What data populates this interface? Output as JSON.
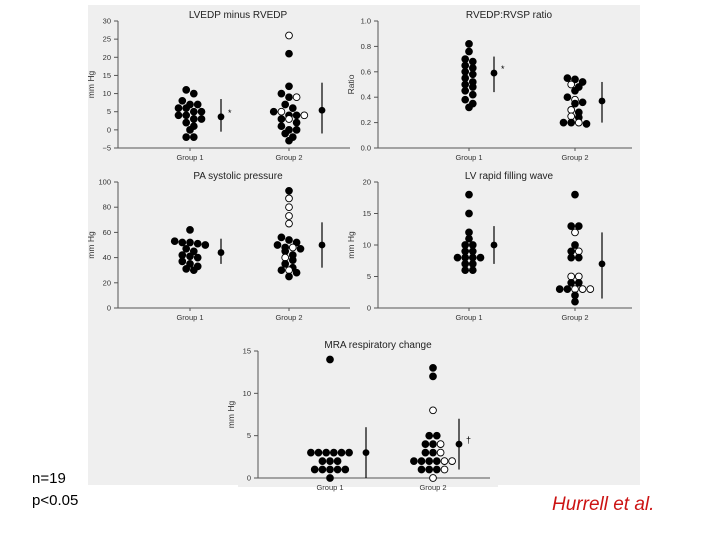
{
  "notes": {
    "n": "n=19",
    "p": "p<0.05"
  },
  "citation": "Hurrell et al.",
  "colors": {
    "panel_background": "#efefef",
    "filled_marker": "#000000",
    "citation": "#cc1414"
  },
  "chart_data": [
    {
      "type": "scatter",
      "title": "LVEDP minus RVEDP",
      "ylabel": "mm Hg",
      "categories": [
        "Group 1",
        "Group 2"
      ],
      "ylim": [
        -5,
        30
      ],
      "yticks": [
        -5,
        0,
        5,
        10,
        15,
        20,
        25,
        30
      ],
      "series": [
        {
          "group": "Group 1",
          "filled": [
            11,
            10,
            8,
            7,
            7,
            6,
            6,
            5,
            5,
            4,
            4,
            3,
            3,
            2,
            1,
            0,
            -2,
            -2
          ],
          "open": []
        },
        {
          "group": "Group 2",
          "filled": [
            21,
            12,
            10,
            9,
            7,
            6,
            5,
            4,
            4,
            3,
            2,
            1,
            0,
            0,
            -1,
            -2,
            -3
          ],
          "open": [
            26,
            9,
            5,
            4,
            3
          ]
        }
      ],
      "summaries": [
        {
          "group": "Group 1",
          "mean": 3.6,
          "low": -0.5,
          "high": 8.5,
          "mark": "*"
        },
        {
          "group": "Group 2",
          "mean": 5.4,
          "low": -1,
          "high": 13,
          "mark": ""
        }
      ]
    },
    {
      "type": "scatter",
      "title": "RVEDP:RVSP ratio",
      "ylabel": "Ratio",
      "categories": [
        "Group 1",
        "Group 2"
      ],
      "ylim": [
        0,
        1
      ],
      "yticks": [
        0,
        0.2,
        0.4,
        0.6,
        0.8,
        1.0
      ],
      "series": [
        {
          "group": "Group 1",
          "filled": [
            0.82,
            0.76,
            0.7,
            0.68,
            0.65,
            0.63,
            0.6,
            0.58,
            0.55,
            0.52,
            0.5,
            0.48,
            0.45,
            0.42,
            0.38,
            0.35,
            0.32
          ],
          "open": []
        },
        {
          "group": "Group 2",
          "filled": [
            0.55,
            0.54,
            0.52,
            0.48,
            0.45,
            0.4,
            0.36,
            0.35,
            0.28,
            0.24,
            0.2,
            0.2,
            0.19
          ],
          "open": [
            0.5,
            0.38,
            0.3,
            0.25,
            0.2
          ]
        }
      ],
      "summaries": [
        {
          "group": "Group 1",
          "mean": 0.59,
          "low": 0.44,
          "high": 0.72,
          "mark": "*"
        },
        {
          "group": "Group 2",
          "mean": 0.37,
          "low": 0.2,
          "high": 0.52,
          "mark": ""
        }
      ]
    },
    {
      "type": "scatter",
      "title": "PA systolic pressure",
      "ylabel": "mm Hg",
      "categories": [
        "Group 1",
        "Group 2"
      ],
      "ylim": [
        0,
        100
      ],
      "yticks": [
        0,
        20,
        40,
        60,
        80,
        100
      ],
      "series": [
        {
          "group": "Group 1",
          "filled": [
            62,
            53,
            52,
            52,
            51,
            50,
            47,
            45,
            42,
            41,
            40,
            37,
            35,
            33,
            31,
            30
          ],
          "open": []
        },
        {
          "group": "Group 2",
          "filled": [
            93,
            56,
            54,
            52,
            50,
            48,
            47,
            45,
            42,
            38,
            35,
            32,
            30,
            28,
            25
          ],
          "open": [
            87,
            80,
            73,
            67,
            48,
            40,
            30
          ]
        }
      ],
      "summaries": [
        {
          "group": "Group 1",
          "mean": 44,
          "low": 35,
          "high": 55,
          "mark": ""
        },
        {
          "group": "Group 2",
          "mean": 50,
          "low": 32,
          "high": 68,
          "mark": ""
        }
      ]
    },
    {
      "type": "scatter",
      "title": "LV rapid filling wave",
      "ylabel": "mm Hg",
      "categories": [
        "Group 1",
        "Group 2"
      ],
      "ylim": [
        0,
        20
      ],
      "yticks": [
        0,
        5,
        10,
        15,
        20
      ],
      "series": [
        {
          "group": "Group 1",
          "filled": [
            18,
            15,
            12,
            11,
            10,
            10,
            9,
            9,
            8,
            8,
            8,
            8,
            7,
            7,
            6,
            6
          ],
          "open": []
        },
        {
          "group": "Group 2",
          "filled": [
            18,
            13,
            13,
            10,
            9,
            8,
            8,
            4,
            4,
            3,
            3,
            2,
            1
          ],
          "open": [
            12,
            9,
            5,
            5,
            3,
            3,
            3
          ]
        }
      ],
      "summaries": [
        {
          "group": "Group 1",
          "mean": 10,
          "low": 7,
          "high": 13,
          "mark": ""
        },
        {
          "group": "Group 2",
          "mean": 7,
          "low": 1.5,
          "high": 12,
          "mark": ""
        }
      ]
    },
    {
      "type": "scatter",
      "title": "MRA respiratory change",
      "ylabel": "mm Hg",
      "categories": [
        "Group 1",
        "Group 2"
      ],
      "ylim": [
        0,
        15
      ],
      "yticks": [
        0,
        5,
        10,
        15
      ],
      "series": [
        {
          "group": "Group 1",
          "filled": [
            14,
            3,
            3,
            3,
            3,
            3,
            3,
            2,
            2,
            2,
            1,
            1,
            1,
            1,
            1,
            0
          ],
          "open": []
        },
        {
          "group": "Group 2",
          "filled": [
            13,
            12,
            5,
            5,
            4,
            4,
            3,
            3,
            2,
            2,
            2,
            2,
            1,
            1,
            1
          ],
          "open": [
            8,
            4,
            3,
            2,
            2,
            1,
            0
          ]
        }
      ],
      "summaries": [
        {
          "group": "Group 1",
          "mean": 3,
          "low": 0,
          "high": 6,
          "mark": ""
        },
        {
          "group": "Group 2",
          "mean": 4,
          "low": 1,
          "high": 7,
          "mark": "†"
        }
      ]
    }
  ]
}
